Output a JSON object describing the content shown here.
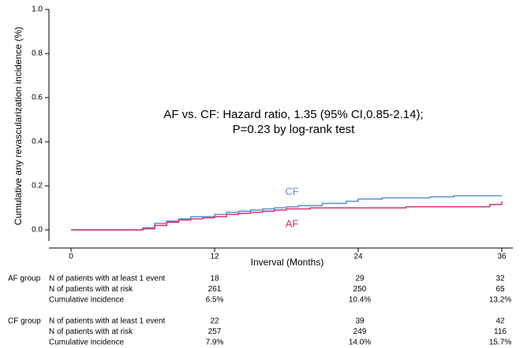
{
  "chart_data": {
    "type": "step",
    "ylabel": "Cumulative any revascularization incidence (%)",
    "xlabel": "Inverval (Months)",
    "annotation": [
      "AF vs. CF: Hazard ratio, 1.35 (95% CI,0.85-2.14);",
      "P=0.23 by log-rank test"
    ],
    "xlim": [
      0,
      36
    ],
    "xticks": [
      0,
      12,
      24,
      36
    ],
    "ylim": [
      0,
      1
    ],
    "yticks": [
      {
        "value": 0,
        "label": "0.0"
      },
      {
        "value": 0.2,
        "label": "0.2"
      },
      {
        "value": 0.4,
        "label": "0.4"
      },
      {
        "value": 0.6,
        "label": "0.6"
      },
      {
        "value": 0.8,
        "label": "0.8"
      },
      {
        "value": 1,
        "label": "1.0"
      }
    ],
    "series": [
      {
        "name": "CF",
        "color": "#5b8ed8",
        "x": [
          0,
          6,
          7,
          8,
          9,
          10,
          12,
          13,
          14,
          15,
          16,
          17,
          18,
          19,
          21,
          23,
          24,
          26,
          30,
          32,
          36
        ],
        "values": [
          0,
          0.01,
          0.03,
          0.04,
          0.05,
          0.06,
          0.07,
          0.08,
          0.085,
          0.09,
          0.095,
          0.1,
          0.105,
          0.11,
          0.12,
          0.13,
          0.14,
          0.145,
          0.15,
          0.155,
          0.155
        ]
      },
      {
        "name": "AF",
        "color": "#d6336c",
        "x": [
          0,
          6,
          7,
          8,
          9,
          10,
          11,
          12,
          13,
          14,
          15,
          16,
          17,
          18,
          20,
          24,
          28,
          35,
          36
        ],
        "values": [
          0,
          0.005,
          0.02,
          0.035,
          0.045,
          0.05,
          0.055,
          0.06,
          0.07,
          0.075,
          0.08,
          0.085,
          0.09,
          0.095,
          0.1,
          0.1,
          0.105,
          0.115,
          0.13
        ]
      }
    ]
  },
  "risk_table": [
    {
      "group": "AF group",
      "rows": [
        {
          "label": "N of patients with at least 1 event",
          "values": [
            18,
            29,
            32
          ]
        },
        {
          "label": "N of patients with at risk",
          "values": [
            261,
            250,
            65
          ]
        },
        {
          "label": "Cumulative incidence",
          "values": [
            "6.5%",
            "10.4%",
            "13.2%"
          ]
        }
      ]
    },
    {
      "group": "CF group",
      "rows": [
        {
          "label": "N of patients with at least 1 event",
          "values": [
            22,
            39,
            42
          ]
        },
        {
          "label": "N of patients with at risk",
          "values": [
            257,
            249,
            116
          ]
        },
        {
          "label": "Cumulative incidence",
          "values": [
            "7.9%",
            "14.0%",
            "15.7%"
          ]
        }
      ]
    }
  ]
}
